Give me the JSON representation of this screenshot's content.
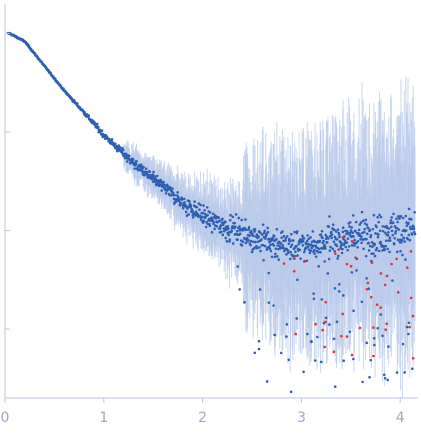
{
  "chart_data": {
    "type": "scatter",
    "title": "",
    "xlabel": "",
    "ylabel": "",
    "xlim": [
      0,
      4.18
    ],
    "x_ticks": [
      {
        "value": 0,
        "label": "0"
      },
      {
        "value": 1,
        "label": "1"
      },
      {
        "value": 2,
        "label": "2"
      },
      {
        "value": 3,
        "label": "3"
      },
      {
        "value": 4,
        "label": "4"
      }
    ],
    "ylim": [
      -3.7,
      0.3
    ],
    "y_tick_values": [
      -3,
      -2,
      -1,
      0
    ],
    "y_tick_labels_visible": false,
    "grid": false,
    "legend": "none",
    "colors": {
      "axis": "#b9c6e4",
      "tick_label": "#9aa8c8",
      "points": "#2f5fb3",
      "error_bars": "#b8c9ea",
      "outliers": "#e0302f"
    },
    "series": [
      {
        "style": "points-with-error-bars",
        "description_points": [
          {
            "x": 0.05,
            "y": 0.0
          },
          {
            "x": 0.2,
            "y": -0.08
          },
          {
            "x": 0.4,
            "y": -0.33
          },
          {
            "x": 0.6,
            "y": -0.58
          },
          {
            "x": 0.8,
            "y": -0.8
          },
          {
            "x": 1.0,
            "y": -1.03
          },
          {
            "x": 1.2,
            "y": -1.22
          },
          {
            "x": 1.4,
            "y": -1.4
          },
          {
            "x": 1.6,
            "y": -1.55
          },
          {
            "x": 1.8,
            "y": -1.72
          },
          {
            "x": 2.0,
            "y": -1.85
          },
          {
            "x": 2.2,
            "y": -1.95
          },
          {
            "x": 2.4,
            "y": -2.02
          },
          {
            "x": 2.6,
            "y": -2.1
          },
          {
            "x": 2.8,
            "y": -2.15
          },
          {
            "x": 3.0,
            "y": -2.15
          },
          {
            "x": 3.2,
            "y": -2.12
          },
          {
            "x": 3.4,
            "y": -2.08
          },
          {
            "x": 3.6,
            "y": -2.05
          },
          {
            "x": 3.8,
            "y": -2.03
          },
          {
            "x": 4.0,
            "y": -2.0
          },
          {
            "x": 4.15,
            "y": -1.98
          }
        ],
        "n_points": 1100
      },
      {
        "style": "outlier-points",
        "range_x": [
          2.8,
          4.15
        ],
        "range_y": [
          -3.3,
          -2.0
        ],
        "n_points": 45
      }
    ]
  }
}
